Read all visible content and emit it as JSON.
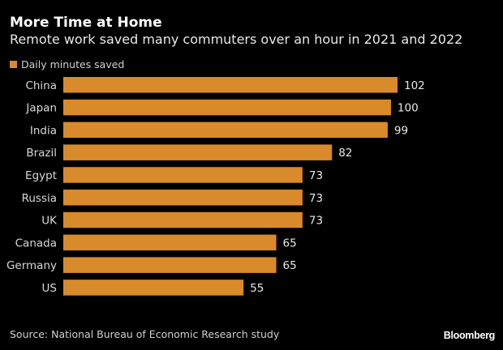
{
  "chart_data": {
    "type": "bar",
    "orientation": "horizontal",
    "title": "More Time at Home",
    "subtitle": "Remote work saved many commuters over an hour in 2021 and 2022",
    "categories": [
      "China",
      "Japan",
      "India",
      "Brazil",
      "Egypt",
      "Russia",
      "UK",
      "Canada",
      "Germany",
      "US"
    ],
    "series": [
      {
        "name": "Daily minutes saved",
        "color": "#d98a2a",
        "values": [
          102,
          100,
          99,
          82,
          73,
          73,
          73,
          65,
          65,
          55
        ]
      }
    ],
    "xlabel": "",
    "ylabel": "",
    "xlim": [
      0,
      102
    ],
    "grid": false,
    "legend": "top-left",
    "data_labels": true
  },
  "footer": {
    "source": "Source: National Bureau of Economic Research study",
    "brand": "Bloomberg"
  }
}
